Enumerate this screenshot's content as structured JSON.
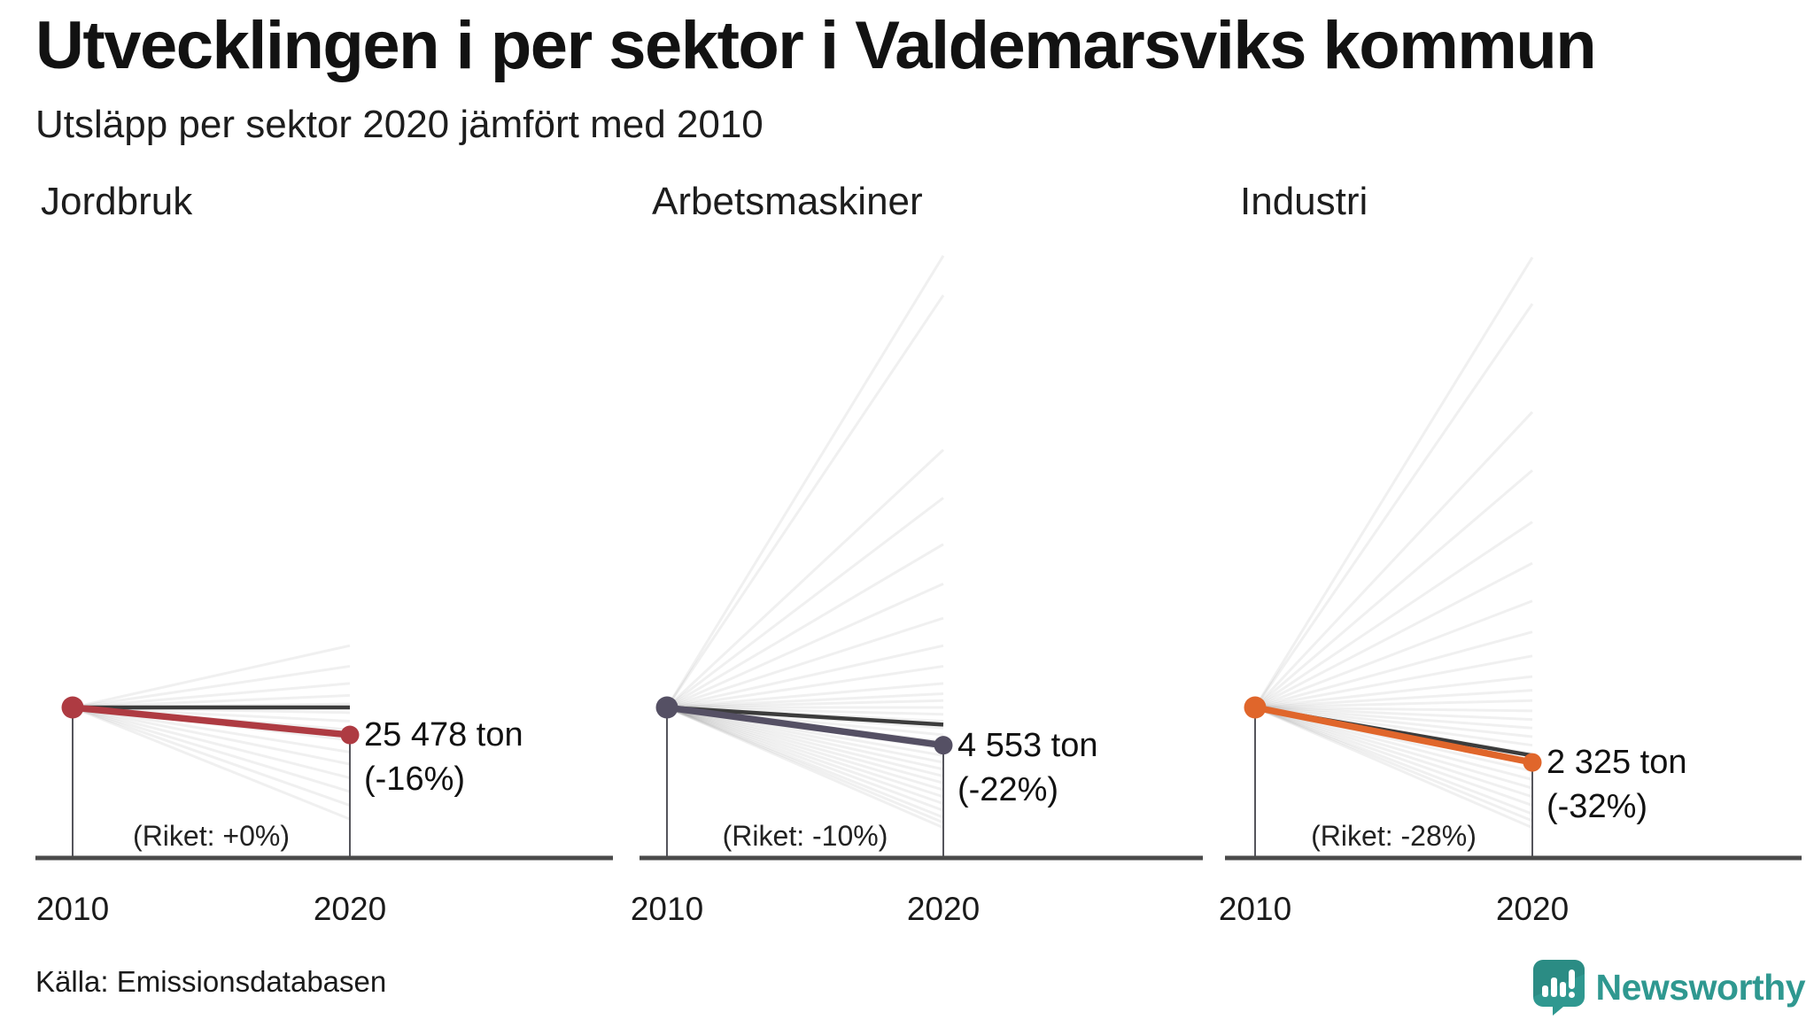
{
  "header": {
    "title": "Utvecklingen i per sektor i Valdemarsviks kommun",
    "subtitle": "Utsläpp per sektor 2020 jämfört med 2010"
  },
  "footer": {
    "source": "Källa: Emissionsdatabasen",
    "brand_name": "Newsworthy"
  },
  "colors": {
    "accent_red": "#AE3B42",
    "accent_slate": "#555064",
    "accent_orange": "#E0662B",
    "national_line": "#3C3C3C",
    "axis": "#4A4A4A",
    "guide": "#55555C",
    "fan_line": "#000000",
    "brand_teal": "#2F9890",
    "background": "#FFFFFF"
  },
  "chart_data": [
    {
      "type": "slope",
      "sector": "Jordbruk",
      "x_labels": [
        "2010",
        "2020"
      ],
      "unit": "ton",
      "value_2020": 25478,
      "value_label": "25 478 ton",
      "change_pct": -16,
      "change_label": "(-16%)",
      "riket_pct": 0,
      "riket_label": "(Riket: +0%)",
      "color": "#AE3B42",
      "background_change_pcts": [
        36,
        24,
        14,
        7,
        2,
        -3,
        -8,
        -13,
        -19,
        -26,
        -33,
        -41,
        -49,
        -57,
        -65
      ]
    },
    {
      "type": "slope",
      "sector": "Arbetsmaskiner",
      "x_labels": [
        "2010",
        "2020"
      ],
      "unit": "ton",
      "value_2020": 4553,
      "value_label": "4 553 ton",
      "change_pct": -22,
      "change_label": "(-22%)",
      "riket_pct": -10,
      "riket_label": "(Riket: -10%)",
      "color": "#555064",
      "background_change_pcts": [
        263,
        240,
        150,
        122,
        95,
        72,
        52,
        36,
        24,
        14,
        8,
        4,
        0,
        -4,
        -8,
        -12,
        -16,
        -20,
        -24,
        -28,
        -32,
        -36,
        -40,
        -44,
        -48,
        -52,
        -56,
        -60,
        -64,
        -67,
        -70
      ]
    },
    {
      "type": "slope",
      "sector": "Industri",
      "x_labels": [
        "2010",
        "2020"
      ],
      "unit": "ton",
      "value_2020": 2325,
      "value_label": "2 325 ton",
      "change_pct": -32,
      "change_label": "(-32%)",
      "riket_pct": -28,
      "riket_label": "(Riket: -28%)",
      "color": "#E0662B",
      "background_change_pcts": [
        262,
        235,
        172,
        138,
        108,
        84,
        62,
        44,
        30,
        18,
        10,
        4,
        -2,
        -7,
        -12,
        -17,
        -22,
        -27,
        -32,
        -37,
        -42,
        -47,
        -52,
        -57,
        -62,
        -66,
        -70
      ]
    }
  ]
}
